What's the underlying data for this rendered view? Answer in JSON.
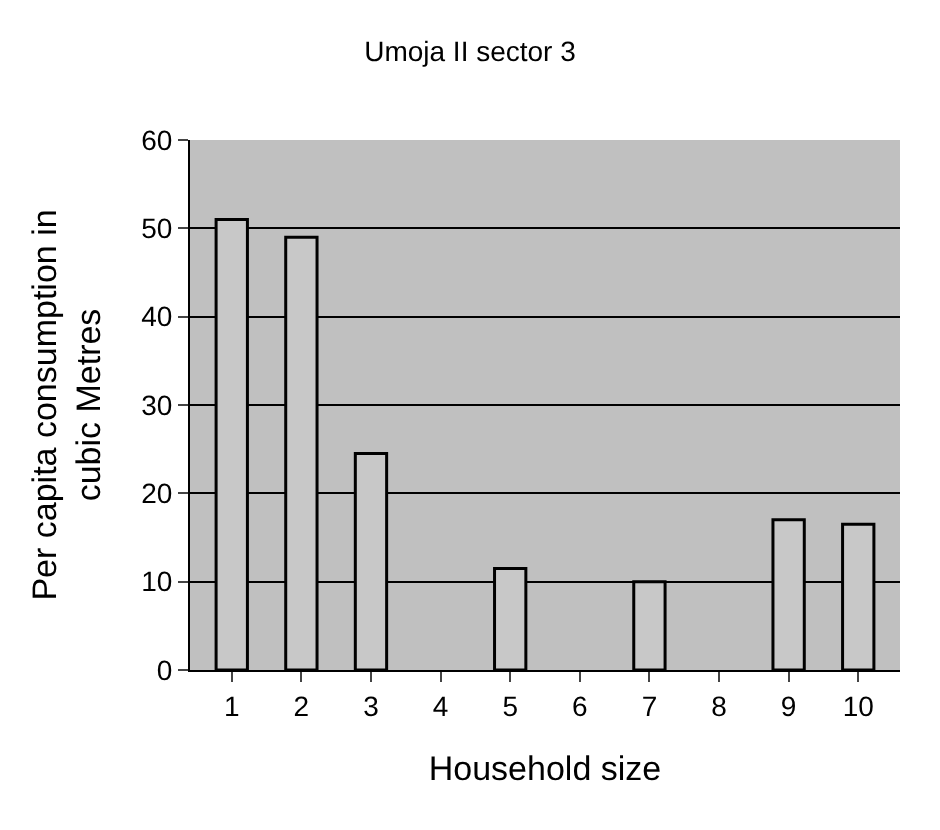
{
  "chart_data": {
    "type": "bar",
    "title": "Umoja II sector 3",
    "xlabel": "Household size",
    "ylabel": "Per capita consumption in cubic Metres",
    "categories": [
      "1",
      "2",
      "3",
      "4",
      "5",
      "6",
      "7",
      "8",
      "9",
      "10"
    ],
    "values": [
      51,
      49,
      24.5,
      null,
      11.5,
      null,
      10,
      null,
      17,
      16.5
    ],
    "color": "#c8c8c8",
    "ylim": [
      0,
      60
    ],
    "yticks": [
      0,
      10,
      20,
      30,
      40,
      50,
      60
    ],
    "grid": "y",
    "legend": false
  }
}
